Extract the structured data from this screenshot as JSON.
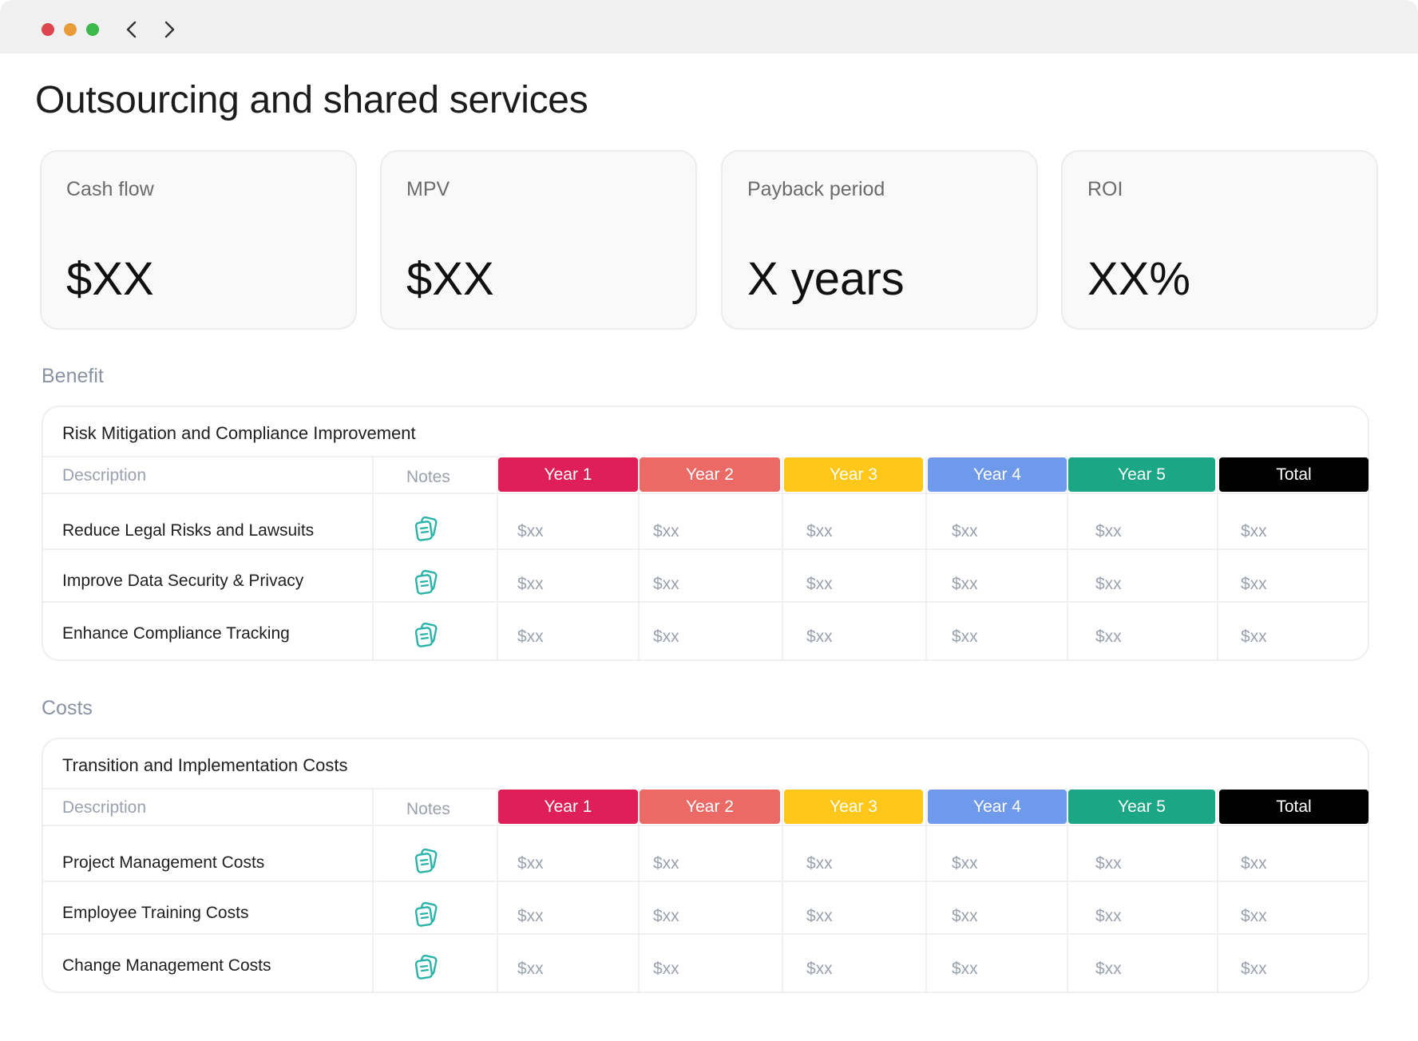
{
  "window": {
    "controls": {
      "close_color": "#e0444f",
      "minimize_color": "#e99b3a",
      "maximize_color": "#3bb94a"
    }
  },
  "page_title": "Outsourcing and shared services",
  "kpis": [
    {
      "label": "Cash flow",
      "value": "$XX"
    },
    {
      "label": "MPV",
      "value": "$XX"
    },
    {
      "label": "Payback period",
      "value": "X years"
    },
    {
      "label": "ROI",
      "value": "XX%"
    }
  ],
  "colors": {
    "year1": "#df1f57",
    "year2": "#ec6a66",
    "year3": "#fec71a",
    "year4": "#6f99ea",
    "year5": "#1ba785",
    "total": "#000000",
    "note_icon": "#2ab3a8"
  },
  "sections": [
    {
      "label": "Benefit",
      "table_title": "Risk Mitigation and Compliance Improvement",
      "columns": {
        "description": "Description",
        "notes": "Notes",
        "years": [
          "Year 1",
          "Year 2",
          "Year 3",
          "Year 4",
          "Year 5"
        ],
        "total": "Total"
      },
      "rows": [
        {
          "description": "Reduce Legal Risks and Lawsuits",
          "notes_icon": "notes-icon",
          "values": [
            "$xx",
            "$xx",
            "$xx",
            "$xx",
            "$xx",
            "$xx"
          ]
        },
        {
          "description": "Improve Data Security & Privacy",
          "notes_icon": "notes-icon",
          "values": [
            "$xx",
            "$xx",
            "$xx",
            "$xx",
            "$xx",
            "$xx"
          ]
        },
        {
          "description": "Enhance Compliance Tracking",
          "notes_icon": "notes-icon",
          "values": [
            "$xx",
            "$xx",
            "$xx",
            "$xx",
            "$xx",
            "$xx"
          ]
        }
      ]
    },
    {
      "label": "Costs",
      "table_title": "Transition and Implementation Costs",
      "columns": {
        "description": "Description",
        "notes": "Notes",
        "years": [
          "Year 1",
          "Year 2",
          "Year 3",
          "Year 4",
          "Year 5"
        ],
        "total": "Total"
      },
      "rows": [
        {
          "description": "Project Management Costs",
          "notes_icon": "notes-icon",
          "values": [
            "$xx",
            "$xx",
            "$xx",
            "$xx",
            "$xx",
            "$xx"
          ]
        },
        {
          "description": "Employee Training Costs",
          "notes_icon": "notes-icon",
          "values": [
            "$xx",
            "$xx",
            "$xx",
            "$xx",
            "$xx",
            "$xx"
          ]
        },
        {
          "description": "Change Management Costs",
          "notes_icon": "notes-icon",
          "values": [
            "$xx",
            "$xx",
            "$xx",
            "$xx",
            "$xx",
            "$xx"
          ]
        }
      ]
    }
  ]
}
